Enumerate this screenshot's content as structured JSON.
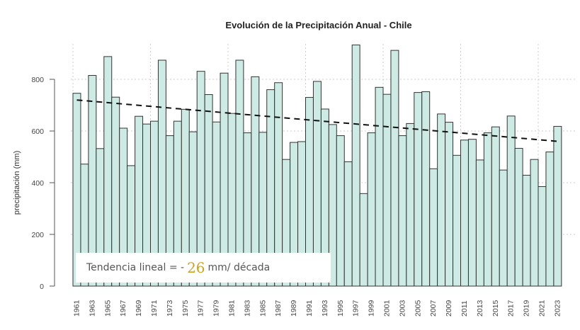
{
  "chart_data": {
    "type": "bar",
    "title": "Evolución de la Precipitación Anual - Chile",
    "xlabel": "",
    "ylabel": "precipitación (mm)",
    "ylim": [
      0,
      940
    ],
    "yticks": [
      0,
      200,
      400,
      600,
      800
    ],
    "grid": true,
    "bar_color": "#cdebe4",
    "bar_edge_color": "#333333",
    "categories": [
      "1961",
      "1962",
      "1963",
      "1964",
      "1965",
      "1966",
      "1967",
      "1968",
      "1969",
      "1970",
      "1971",
      "1972",
      "1973",
      "1974",
      "1975",
      "1976",
      "1977",
      "1978",
      "1979",
      "1980",
      "1981",
      "1982",
      "1983",
      "1984",
      "1985",
      "1986",
      "1987",
      "1988",
      "1989",
      "1990",
      "1991",
      "1992",
      "1993",
      "1994",
      "1995",
      "1996",
      "1997",
      "1998",
      "1999",
      "2000",
      "2001",
      "2002",
      "2003",
      "2004",
      "2005",
      "2006",
      "2007",
      "2008",
      "2009",
      "2010",
      "2011",
      "2012",
      "2013",
      "2014",
      "2015",
      "2016",
      "2017",
      "2018",
      "2019",
      "2020",
      "2021",
      "2022",
      "2023"
    ],
    "tick_labels": [
      "1961",
      "1963",
      "1965",
      "1967",
      "1969",
      "1971",
      "1973",
      "1975",
      "1977",
      "1979",
      "1981",
      "1983",
      "1985",
      "1987",
      "1989",
      "1991",
      "1993",
      "1995",
      "1997",
      "1999",
      "2001",
      "2003",
      "2005",
      "2007",
      "2009",
      "2011",
      "2013",
      "2015",
      "2017",
      "2019",
      "2021",
      "2023"
    ],
    "values": [
      746,
      472,
      815,
      532,
      888,
      731,
      611,
      466,
      657,
      627,
      638,
      874,
      582,
      638,
      684,
      597,
      831,
      741,
      635,
      824,
      668,
      874,
      593,
      810,
      595,
      760,
      787,
      490,
      556,
      559,
      730,
      792,
      685,
      625,
      582,
      481,
      933,
      358,
      593,
      769,
      742,
      912,
      582,
      629,
      749,
      752,
      454,
      666,
      634,
      506,
      565,
      568,
      488,
      593,
      616,
      449,
      658,
      533,
      429,
      490,
      385,
      519,
      618
    ],
    "trend": {
      "start_value": 720,
      "end_value": 560,
      "style": "dashed",
      "color": "#111111"
    },
    "annotation": {
      "prefix": "Tendencia lineal = -",
      "value": "26",
      "suffix": "mm/ década",
      "value_color": "#c9a227"
    }
  }
}
